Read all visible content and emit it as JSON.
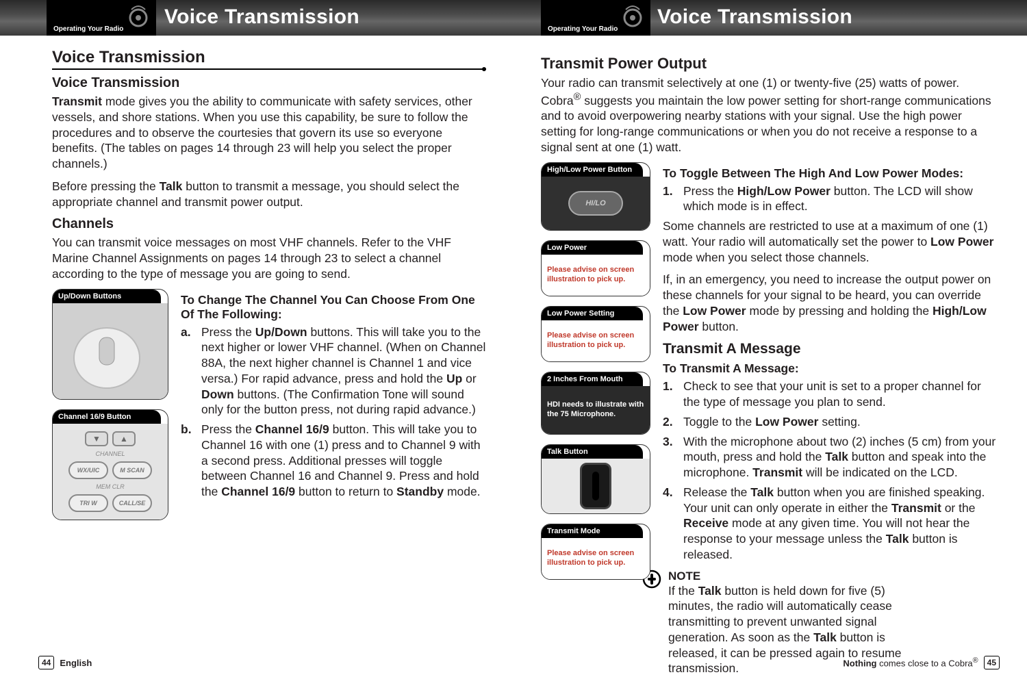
{
  "header": {
    "tab_label": "Operating Your Radio",
    "title": "Voice Transmission"
  },
  "left": {
    "section_title": "Voice Transmission",
    "sub1": "Voice Transmission",
    "p1": "<b>Transmit</b> mode gives you the ability to communicate with safety services, other vessels, and shore stations. When you use this capability, be sure to follow the procedures and to observe the courtesies that govern its use so everyone benefits. (The tables on pages 14 through 23 will help you select the proper channels.)",
    "p2": "Before pressing the <b>Talk</b> button to transmit a message, you should select the appropriate channel and transmit power output.",
    "channels_h": "Channels",
    "channels_p": "You can transmit voice messages on most VHF channels. Refer to the VHF Marine Channel Assignments on pages 14 through 23 to select a channel according to the type of message you are going to send.",
    "callouts": {
      "updown": "Up/Down Buttons",
      "ch169": "Channel 16/9 Button"
    },
    "choose_h": "To Change The Channel You Can Choose From One Of The Following:",
    "item_a": "Press the <b>Up/Down</b> buttons. This will take you to the next higher or lower VHF channel. (When on Channel 88A, the next higher channel is Channel 1 and vice versa.) For rapid advance, press and hold the <b>Up</b> or <b>Down</b> buttons. (The Confirmation Tone will sound only for the button press, not during rapid advance.)",
    "item_b": "Press the <b>Channel 16/9</b> button. This will take you to Channel 16 with one (1) press and to Channel 9 with a second press. Additional presses will toggle between Channel 16 and Channel 9. Press and hold the <b>Channel 16/9</b> button to return to <b>Standby</b> mode."
  },
  "right": {
    "tpo_h": "Transmit Power Output",
    "tpo_p": "Your radio can transmit selectively at one (1) or twenty-five (25) watts of power. Cobra<sup>®</sup> suggests you maintain the low power setting for short-range communications and to avoid overpowering nearby stations with your signal. Use the high power setting for long-range communications or when you do not receive a response to a signal sent at one (1) watt.",
    "callouts": {
      "hilo": "High/Low Power Button",
      "lowp": "Low Power",
      "lowps": "Low Power Setting",
      "mouth": "2 Inches From Mouth",
      "talk": "Talk Button",
      "tmode": "Transmit Mode"
    },
    "red_advise": "Please advise on screen illustration to pick up.",
    "white_advise": "HDI needs to illustrate with the 75 Microphone.",
    "toggle_h": "To Toggle Between The High And Low Power Modes:",
    "toggle_1": "Press the <b>High/Low Power</b> button. The LCD will show which mode is in effect.",
    "toggle_p2": "Some channels are restricted to use at a maximum of one (1) watt. Your radio will automatically set the power to <b>Low Power</b> mode when you select those channels.",
    "toggle_p3": "If, in an emergency, you need to increase the output power on these channels for your signal to be heard, you can override the <b>Low Power</b> mode by pressing and holding the <b>High/Low Power</b> button.",
    "tam_h": "Transmit A Message",
    "tam_sub": "To Transmit A Message:",
    "tam_1": "Check to see that your unit is set to a proper channel for the type of message you plan to send.",
    "tam_2": "Toggle to the <b>Low Power</b> setting.",
    "tam_3": "With the microphone about two (2) inches (5 cm) from your mouth, press and hold the <b>Talk</b> button and speak into the microphone. <b>Transmit</b> will be indicated on the LCD.",
    "tam_4": "Release the <b>Talk</b> button when you are finished speaking. Your unit can only operate in either the <b>Transmit</b> or the <b>Receive</b> mode at any given time. You will not hear the response to your message unless the <b>Talk</b> button is released.",
    "note_h": "NOTE",
    "note_p": "If the <b>Talk</b> button is held down for five (5) minutes, the radio will automatically cease transmitting to prevent unwanted signal generation. As soon as the <b>Talk</b> button is released, it can be pressed again to resume transmission."
  },
  "footer": {
    "left_page": "44",
    "left_lang": "English",
    "right_text": "<b>Nothing</b> comes close to a Cobra<sup>®</sup>",
    "right_page": "45"
  },
  "device_labels": {
    "hilo": "HI/LO",
    "channel": "CHANNEL",
    "wxuic": "WX/UIC",
    "mscan": "M SCAN",
    "memclr": "MEM CLR",
    "triw": "TRI W",
    "callse": "CALL/SE"
  }
}
